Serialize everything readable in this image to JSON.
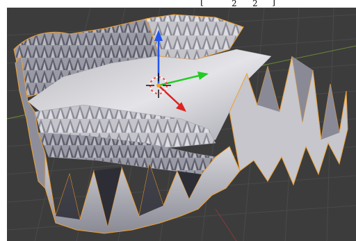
{
  "formula": {
    "bracket_left": "[",
    "sub_1": "2",
    "sub_2": "2",
    "bracket_right": "]"
  },
  "viewport": {
    "background": "#3c3c3c",
    "grid_color": "#4a4a4a",
    "x_axis_color": "#8a3a3a",
    "y_axis_color": "#5a8a2a",
    "mesh_color": "#c8c8cc",
    "mesh_shadow": "#6e6e7a",
    "selection_outline": "#f0a030"
  },
  "gizmo": {
    "x_axis_color": "#dd2222",
    "y_axis_color": "#22cc22",
    "z_axis_color": "#2255ee"
  },
  "cursor_3d": {
    "ring_colors": [
      "#ff4040",
      "#ffffff"
    ]
  }
}
